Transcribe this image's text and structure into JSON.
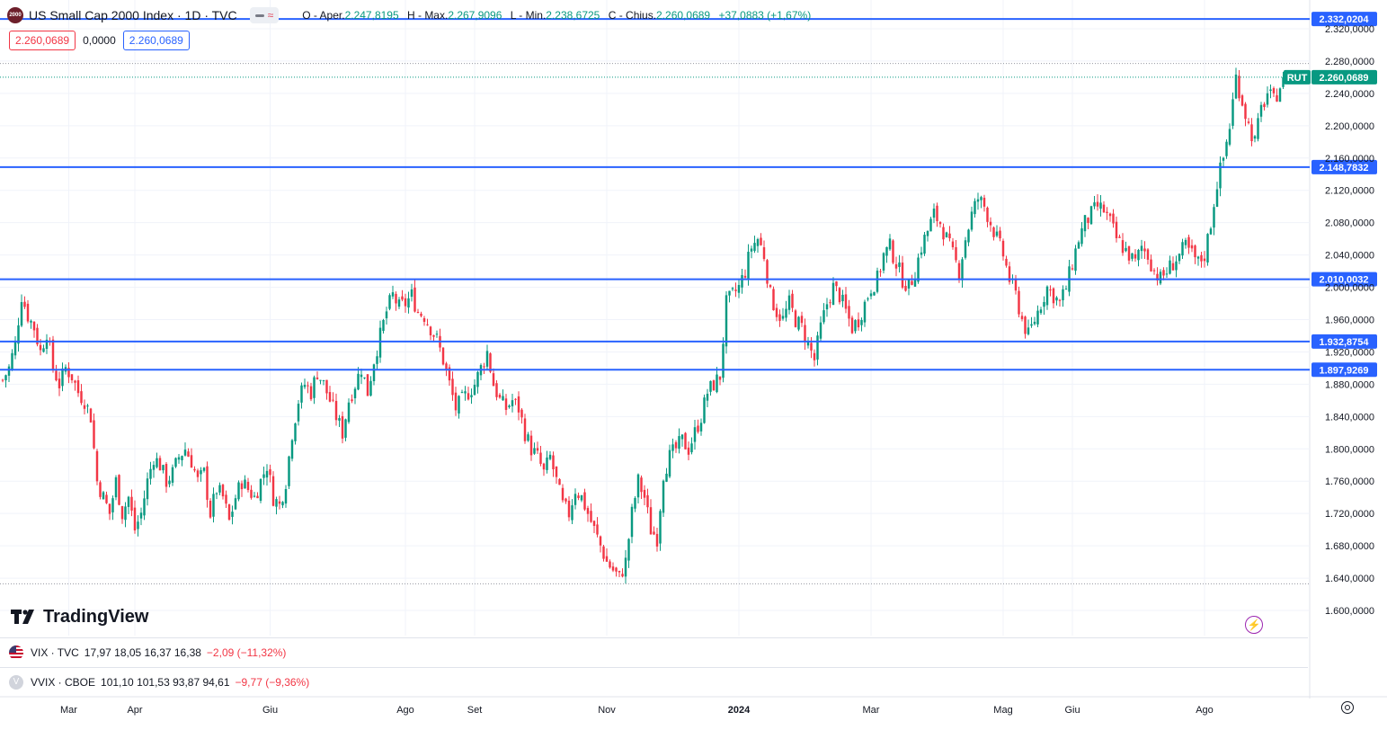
{
  "header": {
    "logo_text": "2000",
    "symbol": "US Small Cap 2000 Index · 1D · TVC",
    "ohlc": [
      {
        "k": "O - Aper.",
        "v": "2.247,8195"
      },
      {
        "k": "H - Max.",
        "v": "2.267,9096"
      },
      {
        "k": "L - Min.",
        "v": "2.238,6725"
      },
      {
        "k": "C - Chius.",
        "v": "2.260,0689"
      }
    ],
    "change": "+37,0883 (+1,67%)",
    "bid": "2.260,0689",
    "spread": "0,0000",
    "ask": "2.260,0689"
  },
  "brand": "TradingView",
  "panes": [
    {
      "symbol": "VIX · TVC",
      "icon": "us-flag-icon",
      "values": "17,97  18,05  16,37  16,38",
      "change": "−2,09 (−11,32%)"
    },
    {
      "symbol": "VVIX · CBOE",
      "icon": "vvix-icon",
      "icon_text": "V",
      "values": "101,10  101,53  93,87  94,61",
      "change": "−9,77 (−9,36%)"
    }
  ],
  "colors": {
    "up": "#089981",
    "down": "#f23645",
    "level": "#2962ff",
    "last": "#089981"
  },
  "chart_data": {
    "type": "candlestick",
    "symbol_badge": "RUT",
    "last_price": 2260.0689,
    "last_price_label": "2.260,0689",
    "ylim": [
      1580,
      2340
    ],
    "y_ticks": [
      {
        "v": 2320,
        "label": "2.320,0000"
      },
      {
        "v": 2280,
        "label": "2.280,0000"
      },
      {
        "v": 2240,
        "label": "2.240,0000"
      },
      {
        "v": 2200,
        "label": "2.200,0000"
      },
      {
        "v": 2160,
        "label": "2.160,0000"
      },
      {
        "v": 2120,
        "label": "2.120,0000"
      },
      {
        "v": 2080,
        "label": "2.080,0000"
      },
      {
        "v": 2040,
        "label": "2.040,0000"
      },
      {
        "v": 2000,
        "label": "2.000,0000"
      },
      {
        "v": 1960,
        "label": "1.960,0000"
      },
      {
        "v": 1920,
        "label": "1.920,0000"
      },
      {
        "v": 1880,
        "label": "1.880,0000"
      },
      {
        "v": 1840,
        "label": "1.840,0000"
      },
      {
        "v": 1800,
        "label": "1.800,0000"
      },
      {
        "v": 1760,
        "label": "1.760,0000"
      },
      {
        "v": 1720,
        "label": "1.720,0000"
      },
      {
        "v": 1680,
        "label": "1.680,0000"
      },
      {
        "v": 1640,
        "label": "1.640,0000"
      },
      {
        "v": 1600,
        "label": "1.600,0000"
      }
    ],
    "horizontal_levels": [
      {
        "v": 2332.0204,
        "label": "2.332,0204"
      },
      {
        "v": 2148.7832,
        "label": "2.148,7832"
      },
      {
        "v": 2010.0032,
        "label": "2.010,0032"
      },
      {
        "v": 1932.8754,
        "label": "1.932,8754"
      },
      {
        "v": 1897.9269,
        "label": "1.897,9269"
      }
    ],
    "dotted_levels": [
      2277,
      1633
    ],
    "x_ticks": [
      {
        "label": "Mar",
        "idx": 21
      },
      {
        "label": "Apr",
        "idx": 42
      },
      {
        "label": "Giu",
        "idx": 85
      },
      {
        "label": "Ago",
        "idx": 128
      },
      {
        "label": "Set",
        "idx": 150
      },
      {
        "label": "Nov",
        "idx": 192
      },
      {
        "label": "2024",
        "idx": 234,
        "bold": true
      },
      {
        "label": "Mar",
        "idx": 276
      },
      {
        "label": "Mag",
        "idx": 318
      },
      {
        "label": "Giu",
        "idx": 340
      },
      {
        "label": "Ago",
        "idx": 382
      }
    ],
    "index_range": [
      0,
      414
    ],
    "closes": [
      [
        0,
        1885
      ],
      [
        2,
        1900
      ],
      [
        4,
        1930
      ],
      [
        6,
        1990
      ],
      [
        8,
        1965
      ],
      [
        10,
        1950
      ],
      [
        12,
        1920
      ],
      [
        14,
        1945
      ],
      [
        16,
        1900
      ],
      [
        18,
        1880
      ],
      [
        20,
        1900
      ],
      [
        22,
        1890
      ],
      [
        24,
        1870
      ],
      [
        26,
        1860
      ],
      [
        28,
        1840
      ],
      [
        30,
        1760
      ],
      [
        32,
        1740
      ],
      [
        34,
        1720
      ],
      [
        36,
        1760
      ],
      [
        38,
        1720
      ],
      [
        40,
        1740
      ],
      [
        42,
        1700
      ],
      [
        44,
        1720
      ],
      [
        46,
        1760
      ],
      [
        48,
        1790
      ],
      [
        50,
        1780
      ],
      [
        52,
        1760
      ],
      [
        54,
        1770
      ],
      [
        56,
        1790
      ],
      [
        58,
        1800
      ],
      [
        60,
        1785
      ],
      [
        62,
        1760
      ],
      [
        64,
        1770
      ],
      [
        66,
        1720
      ],
      [
        68,
        1750
      ],
      [
        70,
        1740
      ],
      [
        72,
        1710
      ],
      [
        74,
        1740
      ],
      [
        76,
        1760
      ],
      [
        78,
        1750
      ],
      [
        80,
        1740
      ],
      [
        82,
        1760
      ],
      [
        84,
        1780
      ],
      [
        86,
        1740
      ],
      [
        88,
        1730
      ],
      [
        90,
        1760
      ],
      [
        92,
        1820
      ],
      [
        94,
        1860
      ],
      [
        96,
        1880
      ],
      [
        98,
        1870
      ],
      [
        100,
        1895
      ],
      [
        102,
        1880
      ],
      [
        104,
        1860
      ],
      [
        106,
        1840
      ],
      [
        108,
        1820
      ],
      [
        110,
        1860
      ],
      [
        112,
        1880
      ],
      [
        114,
        1900
      ],
      [
        116,
        1870
      ],
      [
        118,
        1910
      ],
      [
        120,
        1940
      ],
      [
        122,
        1970
      ],
      [
        124,
        1990
      ],
      [
        126,
        1975
      ],
      [
        128,
        1980
      ],
      [
        130,
        1990
      ],
      [
        132,
        1970
      ],
      [
        134,
        1965
      ],
      [
        136,
        1950
      ],
      [
        138,
        1935
      ],
      [
        140,
        1910
      ],
      [
        142,
        1880
      ],
      [
        144,
        1850
      ],
      [
        146,
        1860
      ],
      [
        148,
        1870
      ],
      [
        150,
        1880
      ],
      [
        152,
        1900
      ],
      [
        154,
        1920
      ],
      [
        156,
        1880
      ],
      [
        158,
        1860
      ],
      [
        160,
        1850
      ],
      [
        162,
        1860
      ],
      [
        164,
        1850
      ],
      [
        166,
        1820
      ],
      [
        168,
        1800
      ],
      [
        170,
        1790
      ],
      [
        172,
        1770
      ],
      [
        174,
        1790
      ],
      [
        176,
        1760
      ],
      [
        178,
        1730
      ],
      [
        180,
        1720
      ],
      [
        182,
        1750
      ],
      [
        184,
        1740
      ],
      [
        186,
        1720
      ],
      [
        188,
        1700
      ],
      [
        190,
        1680
      ],
      [
        192,
        1660
      ],
      [
        194,
        1650
      ],
      [
        196,
        1640
      ],
      [
        198,
        1660
      ],
      [
        200,
        1720
      ],
      [
        202,
        1760
      ],
      [
        204,
        1740
      ],
      [
        206,
        1700
      ],
      [
        208,
        1690
      ],
      [
        210,
        1770
      ],
      [
        212,
        1790
      ],
      [
        214,
        1800
      ],
      [
        216,
        1810
      ],
      [
        218,
        1800
      ],
      [
        220,
        1820
      ],
      [
        222,
        1840
      ],
      [
        224,
        1870
      ],
      [
        226,
        1880
      ],
      [
        228,
        1890
      ],
      [
        230,
        1980
      ],
      [
        232,
        1990
      ],
      [
        234,
        2000
      ],
      [
        236,
        2020
      ],
      [
        238,
        2050
      ],
      [
        240,
        2060
      ],
      [
        242,
        2040
      ],
      [
        244,
        1990
      ],
      [
        246,
        1970
      ],
      [
        248,
        1960
      ],
      [
        250,
        1980
      ],
      [
        252,
        1960
      ],
      [
        254,
        1950
      ],
      [
        256,
        1930
      ],
      [
        258,
        1910
      ],
      [
        260,
        1950
      ],
      [
        262,
        1980
      ],
      [
        264,
        2000
      ],
      [
        266,
        1990
      ],
      [
        268,
        1970
      ],
      [
        270,
        1950
      ],
      [
        272,
        1960
      ],
      [
        274,
        1980
      ],
      [
        276,
        2000
      ],
      [
        278,
        2010
      ],
      [
        280,
        2040
      ],
      [
        282,
        2050
      ],
      [
        284,
        2030
      ],
      [
        286,
        2010
      ],
      [
        288,
        2000
      ],
      [
        290,
        2020
      ],
      [
        292,
        2050
      ],
      [
        294,
        2070
      ],
      [
        296,
        2090
      ],
      [
        298,
        2080
      ],
      [
        300,
        2060
      ],
      [
        302,
        2040
      ],
      [
        304,
        2020
      ],
      [
        306,
        2060
      ],
      [
        308,
        2090
      ],
      [
        310,
        2110
      ],
      [
        312,
        2100
      ],
      [
        314,
        2080
      ],
      [
        316,
        2060
      ],
      [
        318,
        2040
      ],
      [
        320,
        2010
      ],
      [
        322,
        1990
      ],
      [
        324,
        1960
      ],
      [
        326,
        1940
      ],
      [
        328,
        1960
      ],
      [
        330,
        1980
      ],
      [
        332,
        2000
      ],
      [
        334,
        1990
      ],
      [
        336,
        1980
      ],
      [
        338,
        2000
      ],
      [
        340,
        2030
      ],
      [
        342,
        2060
      ],
      [
        344,
        2080
      ],
      [
        346,
        2090
      ],
      [
        348,
        2100
      ],
      [
        350,
        2095
      ],
      [
        352,
        2080
      ],
      [
        354,
        2060
      ],
      [
        356,
        2050
      ],
      [
        358,
        2040
      ],
      [
        360,
        2030
      ],
      [
        362,
        2050
      ],
      [
        364,
        2040
      ],
      [
        366,
        2020
      ],
      [
        368,
        2010
      ],
      [
        370,
        2020
      ],
      [
        372,
        2030
      ],
      [
        374,
        2040
      ],
      [
        376,
        2050
      ],
      [
        378,
        2040
      ],
      [
        380,
        2030
      ],
      [
        382,
        2040
      ],
      [
        384,
        2080
      ],
      [
        386,
        2130
      ],
      [
        388,
        2160
      ],
      [
        390,
        2200
      ],
      [
        392,
        2260
      ],
      [
        394,
        2230
      ],
      [
        396,
        2200
      ],
      [
        398,
        2180
      ],
      [
        400,
        2220
      ],
      [
        402,
        2240
      ],
      [
        404,
        2230
      ],
      [
        406,
        2250
      ],
      [
        407,
        2260.0689
      ]
    ]
  }
}
